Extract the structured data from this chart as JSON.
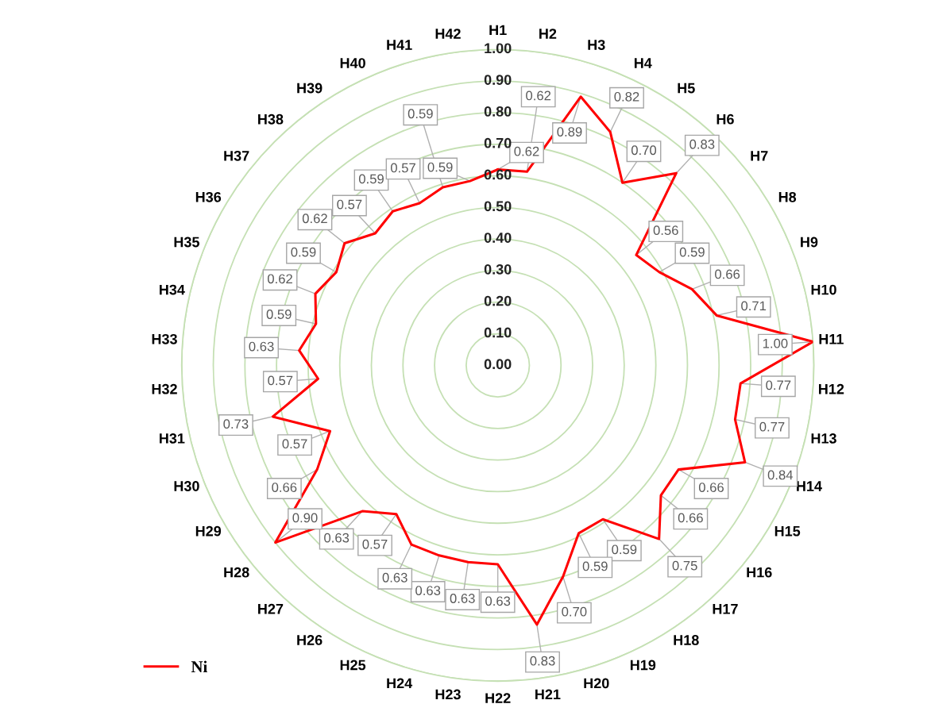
{
  "chart_data": {
    "type": "radar",
    "categories": [
      "H1",
      "H2",
      "H3",
      "H4",
      "H5",
      "H6",
      "H7",
      "H8",
      "H9",
      "H10",
      "H11",
      "H12",
      "H13",
      "H14",
      "H15",
      "H16",
      "H17",
      "H18",
      "H19",
      "H20",
      "H21",
      "H22",
      "H23",
      "H24",
      "H25",
      "H26",
      "H27",
      "H28",
      "H29",
      "H30",
      "H31",
      "H32",
      "H33",
      "H34",
      "H35",
      "H36",
      "H37",
      "H38",
      "H39",
      "H40",
      "H41",
      "H42"
    ],
    "series": [
      {
        "name": "Ni",
        "color": "#ff0000",
        "values": [
          0.62,
          0.62,
          0.89,
          0.82,
          0.7,
          0.83,
          0.56,
          0.59,
          0.66,
          0.71,
          1.0,
          0.77,
          0.77,
          0.84,
          0.66,
          0.66,
          0.75,
          0.59,
          0.59,
          0.7,
          0.83,
          0.63,
          0.63,
          0.63,
          0.63,
          0.57,
          0.63,
          0.9,
          0.66,
          0.57,
          0.73,
          0.57,
          0.63,
          0.59,
          0.62,
          0.59,
          0.62,
          0.57,
          0.59,
          0.57,
          0.59,
          0.59
        ]
      }
    ],
    "ylim": [
      0,
      1
    ],
    "yticks": [
      {
        "value": 0,
        "label": "0.00"
      },
      {
        "value": 0.1,
        "label": "0.10"
      },
      {
        "value": 0.2,
        "label": "0.20"
      },
      {
        "value": 0.3,
        "label": "0.30"
      },
      {
        "value": 0.4,
        "label": "0.40"
      },
      {
        "value": 0.5,
        "label": "0.50"
      },
      {
        "value": 0.6,
        "label": "0.60"
      },
      {
        "value": 0.7,
        "label": "0.70"
      },
      {
        "value": 0.8,
        "label": "0.80"
      },
      {
        "value": 0.9,
        "label": "0.90"
      },
      {
        "value": 1.0,
        "label": "1.00"
      }
    ],
    "value_labels": [
      "0.62",
      "0.62",
      "0.89",
      "0.82",
      "0.70",
      "0.83",
      "0.56",
      "0.59",
      "0.66",
      "0.71",
      "1.00",
      "0.77",
      "0.77",
      "0.84",
      "0.66",
      "0.66",
      "0.75",
      "0.59",
      "0.59",
      "0.70",
      "0.83",
      "0.63",
      "0.63",
      "0.63",
      "0.63",
      "0.57",
      "0.63",
      "0.90",
      "0.66",
      "0.57",
      "0.73",
      "0.57",
      "0.63",
      "0.59",
      "0.62",
      "0.59",
      "0.62",
      "0.57",
      "0.59",
      "0.57",
      "0.59",
      "0.59"
    ],
    "grid": true,
    "legend": "bottom left"
  }
}
